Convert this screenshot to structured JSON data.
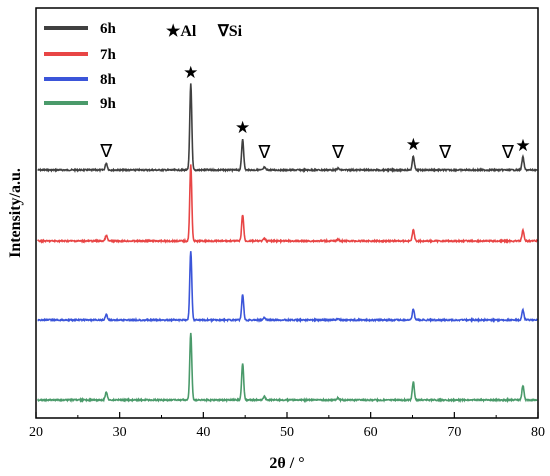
{
  "chart_data": {
    "type": "line",
    "xlabel": "2θ / °",
    "ylabel": "Intensity/a.u.",
    "xlim": [
      20,
      80
    ],
    "x_ticks": [
      20,
      30,
      40,
      50,
      60,
      70,
      80
    ],
    "y_ticks_shown": false,
    "grid": false,
    "legend_position": "top-left",
    "marker_key": {
      "al_label": "★Al",
      "si_label": "∇Si"
    },
    "series": [
      {
        "name": "6h",
        "color": "#404040",
        "peaks": [
          {
            "x": 28.4,
            "h": 0.08
          },
          {
            "x": 38.5,
            "h": 1.0
          },
          {
            "x": 44.7,
            "h": 0.36
          },
          {
            "x": 47.3,
            "h": 0.03
          },
          {
            "x": 56.1,
            "h": 0.02
          },
          {
            "x": 65.1,
            "h": 0.16
          },
          {
            "x": 78.2,
            "h": 0.15
          }
        ]
      },
      {
        "name": "7h",
        "color": "#e84545",
        "peaks": [
          {
            "x": 28.4,
            "h": 0.07
          },
          {
            "x": 38.5,
            "h": 0.95
          },
          {
            "x": 44.7,
            "h": 0.33
          },
          {
            "x": 47.3,
            "h": 0.03
          },
          {
            "x": 56.1,
            "h": 0.02
          },
          {
            "x": 65.1,
            "h": 0.14
          },
          {
            "x": 78.2,
            "h": 0.13
          }
        ]
      },
      {
        "name": "8h",
        "color": "#3b55d9",
        "peaks": [
          {
            "x": 28.4,
            "h": 0.07
          },
          {
            "x": 38.5,
            "h": 0.88
          },
          {
            "x": 44.7,
            "h": 0.33
          },
          {
            "x": 47.3,
            "h": 0.03
          },
          {
            "x": 56.1,
            "h": 0.02
          },
          {
            "x": 65.1,
            "h": 0.14
          },
          {
            "x": 78.2,
            "h": 0.13
          }
        ]
      },
      {
        "name": "9h",
        "color": "#4a9a6a",
        "peaks": [
          {
            "x": 28.4,
            "h": 0.12
          },
          {
            "x": 38.5,
            "h": 0.96
          },
          {
            "x": 44.7,
            "h": 0.53
          },
          {
            "x": 47.3,
            "h": 0.05
          },
          {
            "x": 56.1,
            "h": 0.03
          },
          {
            "x": 65.1,
            "h": 0.26
          },
          {
            "x": 78.2,
            "h": 0.21
          }
        ]
      }
    ],
    "annotations": [
      {
        "symbol": "∇",
        "phase": "Si",
        "x": 28.4
      },
      {
        "symbol": "★",
        "phase": "Al",
        "x": 38.5
      },
      {
        "symbol": "★",
        "phase": "Al",
        "x": 44.7
      },
      {
        "symbol": "∇",
        "phase": "Si",
        "x": 47.3
      },
      {
        "symbol": "∇",
        "phase": "Si",
        "x": 56.1
      },
      {
        "symbol": "★",
        "phase": "Al",
        "x": 65.1
      },
      {
        "symbol": "∇",
        "phase": "Si",
        "x": 68.9
      },
      {
        "symbol": "∇",
        "phase": "Si",
        "x": 76.4
      },
      {
        "symbol": "★",
        "phase": "Al",
        "x": 78.2
      }
    ]
  }
}
